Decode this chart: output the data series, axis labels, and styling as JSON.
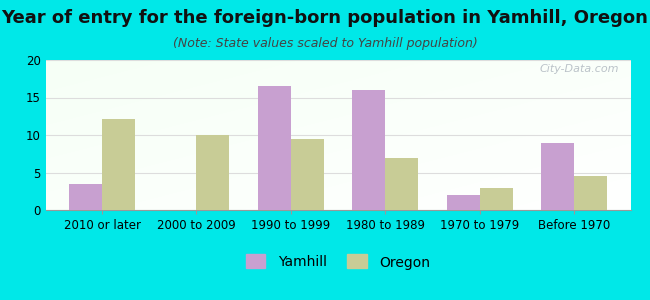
{
  "title": "Year of entry for the foreign-born population in Yamhill, Oregon",
  "subtitle": "(Note: State values scaled to Yamhill population)",
  "categories": [
    "2010 or later",
    "2000 to 2009",
    "1990 to 1999",
    "1980 to 1989",
    "1970 to 1979",
    "Before 1970"
  ],
  "yamhill_values": [
    3.5,
    0,
    16.5,
    16.0,
    2.0,
    9.0
  ],
  "oregon_values": [
    12.2,
    10.0,
    9.5,
    7.0,
    3.0,
    4.5
  ],
  "yamhill_color": "#c8a0d0",
  "oregon_color": "#c8cc96",
  "background_color": "#00e8e8",
  "ylim": [
    0,
    20
  ],
  "yticks": [
    0,
    5,
    10,
    15,
    20
  ],
  "bar_width": 0.35,
  "legend_labels": [
    "Yamhill",
    "Oregon"
  ],
  "title_fontsize": 13,
  "subtitle_fontsize": 9,
  "tick_fontsize": 8.5,
  "legend_fontsize": 10,
  "grid_color": "#dddddd",
  "watermark_text": "City-Data.com"
}
